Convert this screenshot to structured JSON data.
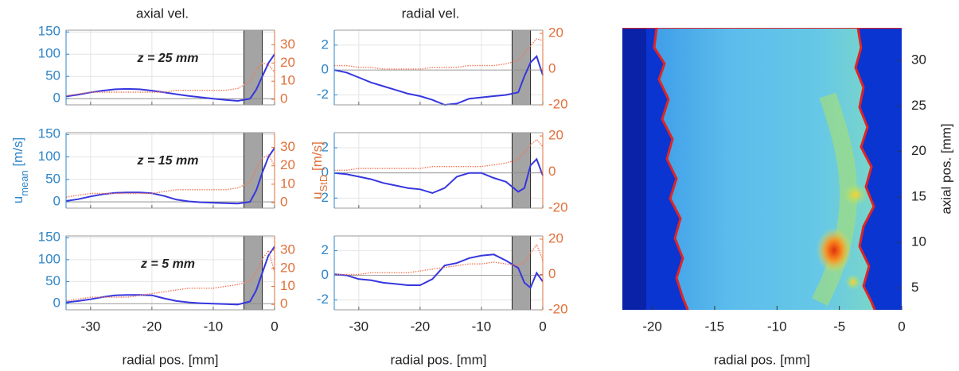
{
  "chart_data": [
    {
      "type": "line",
      "title": "axial vel.",
      "annotation": "z = 25 mm",
      "x": [
        -34,
        -32,
        -30,
        -28,
        -26,
        -24,
        -22,
        -20,
        -18,
        -16,
        -14,
        -12,
        -10,
        -8,
        -6,
        -4,
        -3,
        -2,
        -1,
        0
      ],
      "series": [
        {
          "color": "#3636e0",
          "axis": "y",
          "values": [
            5,
            9,
            14,
            18,
            21,
            22,
            21,
            18,
            14,
            10,
            6,
            3,
            0,
            -3,
            -5,
            0,
            20,
            50,
            80,
            100
          ]
        },
        {
          "color": "#f07a5a",
          "axis": "y2",
          "values": [
            2,
            3,
            4,
            4,
            4,
            4,
            4,
            4,
            4,
            5,
            5,
            5,
            5,
            5,
            6,
            10,
            16,
            20,
            19,
            15
          ]
        }
      ],
      "xlim": [
        -34,
        0
      ],
      "xticks": [
        -30,
        -20,
        -10,
        0
      ],
      "ylim": [
        -14,
        154
      ],
      "yticks": [
        0,
        50,
        100,
        150
      ],
      "y2lim": [
        -3,
        38
      ],
      "y2ticks": [
        0,
        10,
        20,
        30
      ],
      "shade": [
        -5,
        -2
      ],
      "grid": true
    },
    {
      "type": "line",
      "annotation": "z = 15 mm",
      "ylabel": [
        "u",
        "mean",
        " [m/s]"
      ],
      "x": [
        -34,
        -32,
        -30,
        -28,
        -26,
        -24,
        -22,
        -20,
        -18,
        -16,
        -14,
        -12,
        -10,
        -8,
        -6,
        -4,
        -3,
        -2,
        -1,
        0
      ],
      "series": [
        {
          "color": "#3636e0",
          "axis": "y",
          "values": [
            2,
            6,
            12,
            17,
            20,
            21,
            21,
            19,
            13,
            5,
            1,
            -1,
            -2,
            -3,
            -4,
            0,
            25,
            65,
            100,
            120
          ]
        },
        {
          "color": "#f07a5a",
          "axis": "y2",
          "values": [
            3,
            4,
            5,
            5,
            5,
            5,
            5,
            5,
            6,
            7,
            7,
            7,
            7,
            7,
            8,
            11,
            18,
            24,
            26,
            20
          ]
        }
      ],
      "xlim": [
        -34,
        0
      ],
      "xticks": [
        -30,
        -20,
        -10,
        0
      ],
      "ylim": [
        -14,
        154
      ],
      "yticks": [
        0,
        50,
        100,
        150
      ],
      "y2lim": [
        -3,
        38
      ],
      "y2ticks": [
        0,
        10,
        20,
        30
      ],
      "shade": [
        -5,
        -2
      ],
      "grid": true
    },
    {
      "type": "line",
      "annotation": "z = 5 mm",
      "xlabel": "radial pos. [mm]",
      "x": [
        -34,
        -32,
        -30,
        -28,
        -26,
        -24,
        -22,
        -20,
        -18,
        -16,
        -14,
        -12,
        -10,
        -8,
        -6,
        -4,
        -3,
        -2,
        -1,
        0
      ],
      "series": [
        {
          "color": "#3636e0",
          "axis": "y",
          "values": [
            3,
            6,
            10,
            15,
            19,
            20,
            20,
            19,
            12,
            6,
            3,
            1,
            0,
            -1,
            -2,
            5,
            30,
            70,
            110,
            130
          ]
        },
        {
          "color": "#f07a5a",
          "axis": "y2",
          "values": [
            2,
            3,
            4,
            4,
            4,
            4,
            5,
            6,
            7,
            8,
            9,
            9,
            9,
            10,
            11,
            13,
            18,
            25,
            30,
            18
          ]
        }
      ],
      "xlim": [
        -34,
        0
      ],
      "xticks": [
        -30,
        -20,
        -10,
        0
      ],
      "ylim": [
        -14,
        154
      ],
      "yticks": [
        0,
        50,
        100,
        150
      ],
      "y2lim": [
        -3,
        38
      ],
      "y2ticks": [
        0,
        10,
        20,
        30
      ],
      "shade": [
        -5,
        -2
      ],
      "grid": true
    },
    {
      "type": "line",
      "title": "radial vel.",
      "x": [
        -34,
        -32,
        -30,
        -28,
        -26,
        -24,
        -22,
        -20,
        -18,
        -16,
        -14,
        -12,
        -10,
        -8,
        -6,
        -4,
        -3,
        -2,
        -1,
        0
      ],
      "series": [
        {
          "color": "#3636e0",
          "axis": "y",
          "values": [
            0,
            -0.2,
            -0.6,
            -1,
            -1.3,
            -1.6,
            -1.9,
            -2.1,
            -2.4,
            -2.8,
            -2.7,
            -2.3,
            -2.2,
            -2.1,
            -2.0,
            -1.8,
            -0.5,
            0.6,
            1.1,
            -0.4
          ]
        },
        {
          "color": "#f07a5a",
          "axis": "y2",
          "values": [
            2,
            2,
            1,
            1,
            0,
            0,
            0,
            0,
            1,
            1,
            1,
            2,
            2,
            2,
            3,
            5,
            9,
            13,
            17,
            16
          ]
        }
      ],
      "xlim": [
        -34,
        0
      ],
      "xticks": [
        -30,
        -20,
        -10,
        0
      ],
      "ylim": [
        -2.8,
        3.2
      ],
      "yticks": [
        -2,
        0,
        2
      ],
      "y2lim": [
        -20,
        21.8
      ],
      "y2ticks": [
        -20,
        0,
        20
      ],
      "shade": [
        -5,
        -2
      ],
      "grid": true
    },
    {
      "type": "line",
      "y2label": [
        "u",
        "StD",
        " [m/s]"
      ],
      "x": [
        -34,
        -32,
        -30,
        -28,
        -26,
        -24,
        -22,
        -20,
        -18,
        -16,
        -14,
        -12,
        -10,
        -8,
        -6,
        -4,
        -3,
        -2,
        -1,
        0
      ],
      "series": [
        {
          "color": "#3636e0",
          "axis": "y",
          "values": [
            0,
            -0.1,
            -0.3,
            -0.5,
            -0.8,
            -1.0,
            -1.2,
            -1.3,
            -1.6,
            -1.2,
            -0.3,
            0.0,
            0.0,
            -0.4,
            -0.7,
            -1.5,
            -1.2,
            0.6,
            1.1,
            -0.2
          ]
        },
        {
          "color": "#f07a5a",
          "axis": "y2",
          "values": [
            1,
            1,
            2,
            2,
            2,
            2,
            2,
            2,
            3,
            3,
            3,
            3,
            3,
            4,
            5,
            7,
            11,
            15,
            18,
            14
          ]
        }
      ],
      "xlim": [
        -34,
        0
      ],
      "xticks": [
        -30,
        -20,
        -10,
        0
      ],
      "ylim": [
        -2.8,
        3.2
      ],
      "yticks": [
        -2,
        0,
        2
      ],
      "y2lim": [
        -20,
        21.8
      ],
      "y2ticks": [
        -20,
        0,
        20
      ],
      "shade": [
        -5,
        -2
      ],
      "grid": true
    },
    {
      "type": "line",
      "xlabel": "radial pos. [mm]",
      "x": [
        -34,
        -32,
        -30,
        -28,
        -26,
        -24,
        -22,
        -20,
        -18,
        -16,
        -14,
        -12,
        -10,
        -8,
        -6,
        -4,
        -3,
        -2,
        -1,
        0
      ],
      "series": [
        {
          "color": "#3636e0",
          "axis": "y",
          "values": [
            0.1,
            0,
            -0.3,
            -0.4,
            -0.6,
            -0.7,
            -0.8,
            -0.8,
            -0.3,
            0.8,
            1.0,
            1.4,
            1.6,
            1.7,
            1.2,
            0.6,
            -0.6,
            -1.0,
            0.2,
            -0.5
          ]
        },
        {
          "color": "#f07a5a",
          "axis": "y2",
          "values": [
            0,
            0,
            0,
            1,
            1,
            1,
            1,
            2,
            3,
            4,
            5,
            6,
            6,
            7,
            6,
            5,
            7,
            12,
            17,
            8
          ]
        }
      ],
      "xlim": [
        -34,
        0
      ],
      "xticks": [
        -30,
        -20,
        -10,
        0
      ],
      "ylim": [
        -2.8,
        3.2
      ],
      "yticks": [
        -2,
        0,
        2
      ],
      "y2lim": [
        -20,
        21.8
      ],
      "y2ticks": [
        -20,
        0,
        20
      ],
      "shade": [
        -5,
        -2
      ],
      "grid": true
    },
    {
      "type": "image",
      "xlabel": "radial pos. [mm]",
      "ylabel": "axial pos. [mm]",
      "xlim": [
        -22.4,
        0
      ],
      "xticks": [
        -20,
        -15,
        -10,
        -5,
        0
      ],
      "ylim": [
        2.6,
        33.6
      ],
      "yticks": [
        5,
        10,
        15,
        20,
        25,
        30
      ]
    }
  ]
}
